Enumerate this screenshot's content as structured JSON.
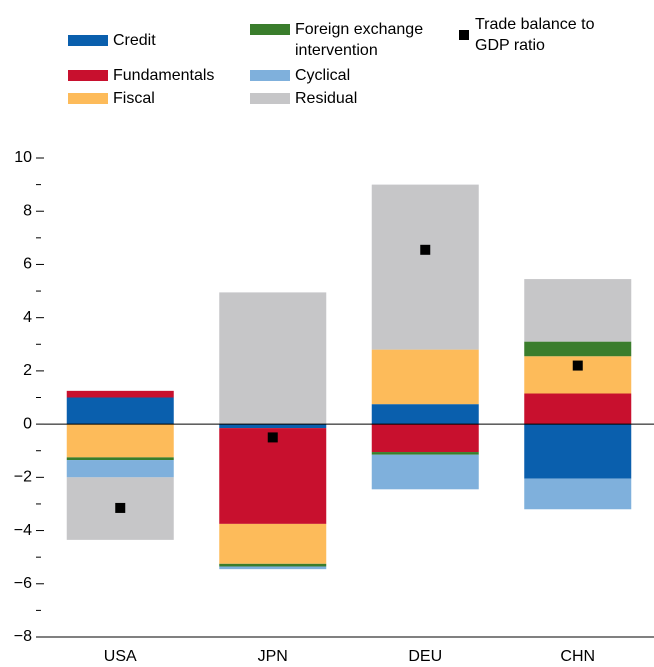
{
  "chart_data": {
    "type": "bar",
    "stacked": true,
    "categories": [
      "USA",
      "JPN",
      "DEU",
      "CHN"
    ],
    "series": [
      {
        "name": "Credit",
        "color": "#0a5fad",
        "values": [
          1.0,
          -0.15,
          0.75,
          -2.05
        ]
      },
      {
        "name": "Fundamentals",
        "color": "#c8102e",
        "values": [
          0.25,
          -3.6,
          -1.05,
          1.15
        ]
      },
      {
        "name": "Fiscal",
        "color": "#fdbb5a",
        "values": [
          -1.25,
          -1.5,
          2.05,
          1.4
        ]
      },
      {
        "name": "Foreign exchange intervention",
        "color": "#3a7d2c",
        "values": [
          -0.1,
          -0.1,
          -0.1,
          0.55
        ]
      },
      {
        "name": "Cyclical",
        "color": "#7fb0dc",
        "values": [
          -0.65,
          -0.1,
          -1.3,
          -1.15
        ]
      },
      {
        "name": "Residual",
        "color": "#c6c6c8",
        "values": [
          -2.35,
          4.95,
          6.2,
          2.35
        ]
      }
    ],
    "markers": {
      "name": "Trade balance to GDP ratio",
      "color": "#000000",
      "values": [
        -3.15,
        -0.5,
        6.55,
        2.2
      ]
    },
    "ylim": [
      -8,
      10
    ],
    "yticks": [
      {
        "value": -8,
        "label": "−8"
      },
      {
        "value": -6,
        "label": "−6"
      },
      {
        "value": -4,
        "label": "−4"
      },
      {
        "value": -2,
        "label": "−2"
      },
      0,
      2,
      4,
      6,
      8,
      10
    ],
    "minor_yticks": [
      -7,
      -5,
      -3,
      -1,
      1,
      3,
      5,
      7,
      9
    ]
  }
}
